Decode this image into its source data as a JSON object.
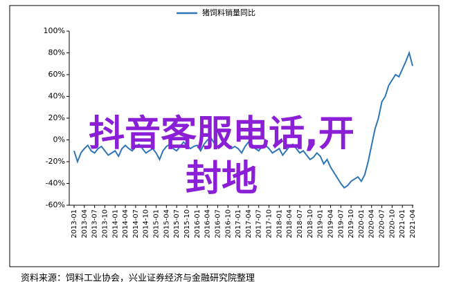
{
  "chart_data": {
    "type": "line",
    "title": "猪饲料销量同比",
    "categories": [
      "2013-01",
      null,
      null,
      "2013-04",
      null,
      null,
      "2013-07",
      null,
      null,
      "2013-10",
      null,
      null,
      "2014-01",
      null,
      null,
      "2014-04",
      null,
      null,
      "2014-07",
      null,
      null,
      "2014-10",
      null,
      null,
      "2015-01",
      null,
      null,
      "2015-04",
      null,
      null,
      "2015-07",
      null,
      null,
      "2015-10",
      null,
      null,
      "2016-01",
      null,
      null,
      "2016-04",
      null,
      null,
      "2016-07",
      null,
      null,
      "2016-10",
      null,
      null,
      "2017-01",
      null,
      null,
      "2017-04",
      null,
      null,
      "2017-07",
      null,
      null,
      "2017-10",
      null,
      null,
      "2018-01",
      null,
      null,
      "2018-04",
      null,
      null,
      "2018-07",
      null,
      null,
      "2018-10",
      null,
      null,
      "2019-01",
      null,
      null,
      "2019-04",
      null,
      null,
      "2019-07",
      null,
      null,
      "2019-10",
      null,
      null,
      "2020-01",
      null,
      null,
      "2020-04",
      null,
      null,
      "2020-07",
      null,
      null,
      "2020-10",
      null,
      null,
      "2021-01",
      null,
      null,
      "2021-04"
    ],
    "series": [
      {
        "name": "猪饲料销量同比",
        "color": "#2e75b6",
        "values": [
          -10,
          -20,
          -12,
          -8,
          -5,
          -10,
          -12,
          -8,
          -6,
          -10,
          -14,
          -12,
          -10,
          -15,
          -8,
          -5,
          -8,
          -10,
          -6,
          -4,
          -8,
          -12,
          -10,
          -8,
          -12,
          -18,
          -10,
          -6,
          -4,
          -8,
          -10,
          -6,
          -2,
          -5,
          -8,
          -6,
          -5,
          -10,
          -4,
          0,
          2,
          -3,
          -6,
          -4,
          -1,
          -4,
          -8,
          -6,
          -8,
          -12,
          -6,
          -2,
          -4,
          -8,
          -10,
          -6,
          -5,
          -8,
          -12,
          -10,
          -8,
          -14,
          -10,
          -6,
          -4,
          -8,
          -12,
          -10,
          -14,
          -18,
          -16,
          -12,
          -15,
          -22,
          -18,
          -25,
          -30,
          -35,
          -40,
          -44,
          -42,
          -38,
          -36,
          -34,
          -38,
          -32,
          -20,
          -5,
          10,
          20,
          35,
          40,
          50,
          55,
          60,
          58,
          65,
          72,
          80,
          68
        ]
      }
    ],
    "ylim": [
      -60,
      100
    ],
    "yticks": [
      {
        "value": -60,
        "label": "-60%"
      },
      {
        "value": -40,
        "label": "-40%"
      },
      {
        "value": -20,
        "label": "-20%"
      },
      {
        "value": 0,
        "label": "0%"
      },
      {
        "value": 20,
        "label": "20%"
      },
      {
        "value": 40,
        "label": "40%"
      },
      {
        "value": 60,
        "label": "60%"
      },
      {
        "value": 80,
        "label": "80%"
      },
      {
        "value": 100,
        "label": "100%"
      }
    ],
    "source": "资料来源：饲料工业协会，兴业证券经济与金融研究院整理",
    "annotations": [
      "抖音客服电话,开",
      "封地"
    ]
  }
}
